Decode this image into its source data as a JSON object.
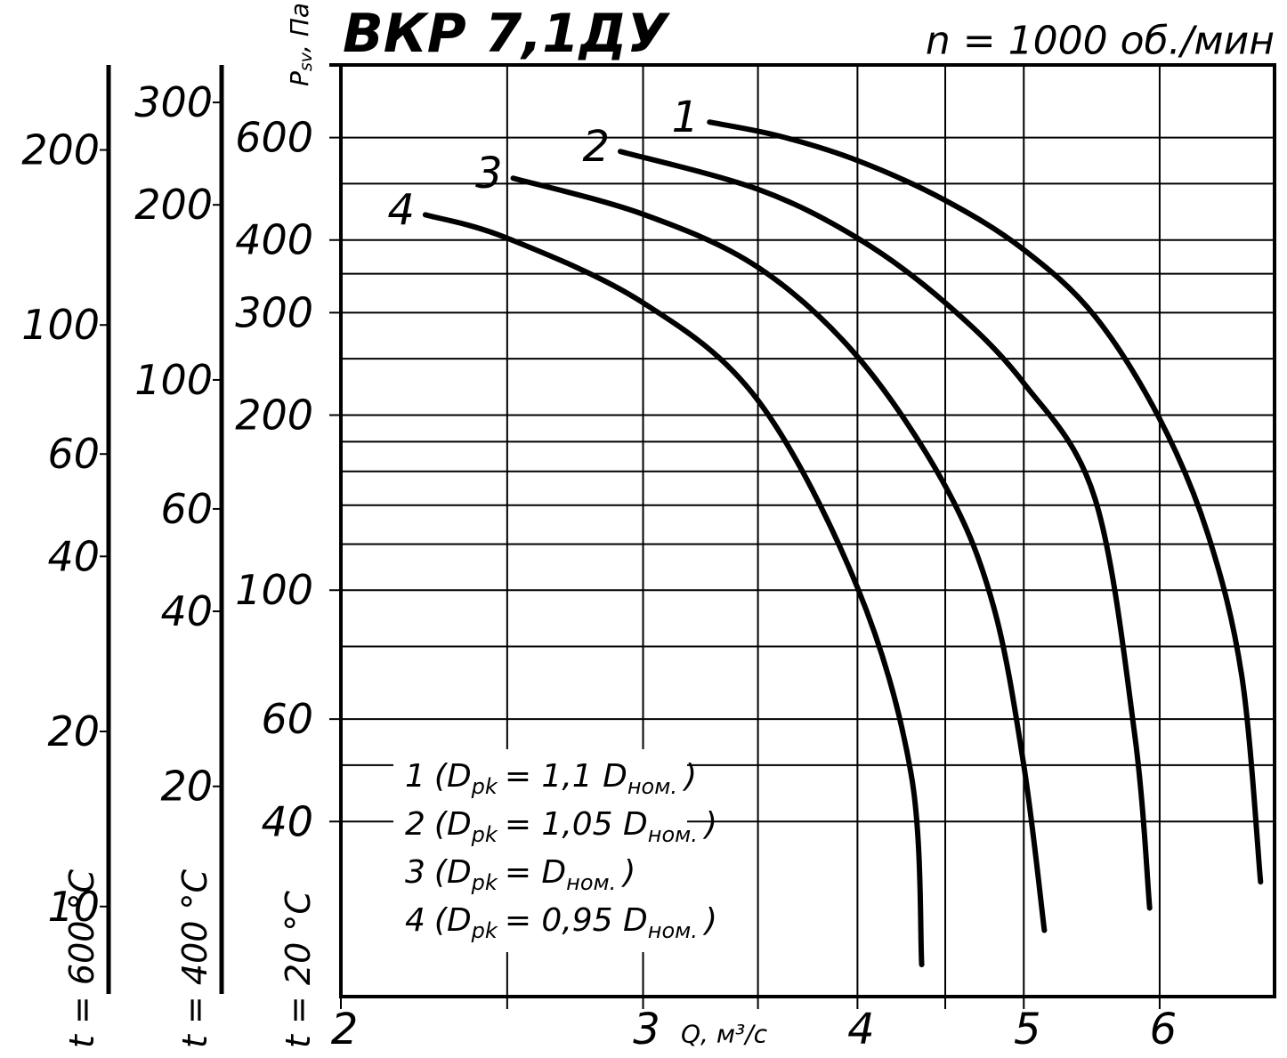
{
  "chart_data": {
    "type": "line",
    "title": "ВКР 7,1ДУ",
    "subtitle": "n = 1000 об./мин",
    "xlabel": "Q, м³/с",
    "ylabel": {
      "symbol": "P",
      "subscript": "sv",
      "unit": ", Па"
    },
    "temp_label": "t = 20 °C",
    "log_x": true,
    "log_y": true,
    "xlim": [
      2,
      7
    ],
    "xticks": [
      2,
      3,
      4,
      5,
      6
    ],
    "minor_xticks": [
      2.5,
      3.5,
      4.5
    ],
    "ylim": [
      20,
      800
    ],
    "yticks": [
      40,
      60,
      100,
      200,
      300,
      400,
      600
    ],
    "minor_yticks": [
      50,
      80,
      120,
      140,
      160,
      180,
      250,
      350,
      500
    ],
    "grid": true,
    "extra_axes": [
      {
        "label": "t = 400 °C",
        "ylim": [
          8.7,
          348
        ],
        "yticks": [
          20,
          40,
          60,
          100,
          200,
          300
        ]
      },
      {
        "label": "t = 600 °C",
        "ylim": [
          7,
          280
        ],
        "yticks": [
          10,
          20,
          40,
          60,
          100,
          200
        ]
      }
    ],
    "series": [
      {
        "name": "1",
        "color": "#000000",
        "legend": [
          "(D",
          "pk",
          "= 1,1 D",
          "ном.",
          ")"
        ],
        "x": [
          3.28,
          3.6,
          4.0,
          4.5,
          5.0,
          5.5,
          6.0,
          6.4,
          6.7,
          6.87
        ],
        "values": [
          638,
          604,
          548,
          468,
          385,
          296,
          197,
          125,
          71,
          31.5
        ]
      },
      {
        "name": "2",
        "color": "#000000",
        "legend": [
          "(D",
          "pk",
          "= 1,05 D",
          "ном.",
          ")"
        ],
        "x": [
          2.91,
          3.5,
          4.0,
          4.5,
          5.0,
          5.5,
          5.8,
          5.92
        ],
        "values": [
          568,
          489,
          403,
          312,
          227,
          144,
          57,
          28.4
        ]
      },
      {
        "name": "3",
        "color": "#000000",
        "legend": [
          "(D",
          "pk",
          "= D",
          "ном.",
          ")"
        ],
        "x": [
          2.52,
          3.0,
          3.5,
          4.0,
          4.5,
          4.8,
          5.0,
          5.14
        ],
        "values": [
          511,
          443,
          359,
          252,
          151,
          94,
          50,
          26
        ]
      },
      {
        "name": "4",
        "color": "#000000",
        "legend": [
          "(D",
          "pk",
          "= 0,95 D",
          "ном.",
          ")"
        ],
        "x": [
          2.24,
          2.5,
          3.0,
          3.5,
          4.0,
          4.3,
          4.36
        ],
        "values": [
          442,
          403,
          312,
          212,
          101,
          48,
          22.7
        ]
      }
    ]
  }
}
